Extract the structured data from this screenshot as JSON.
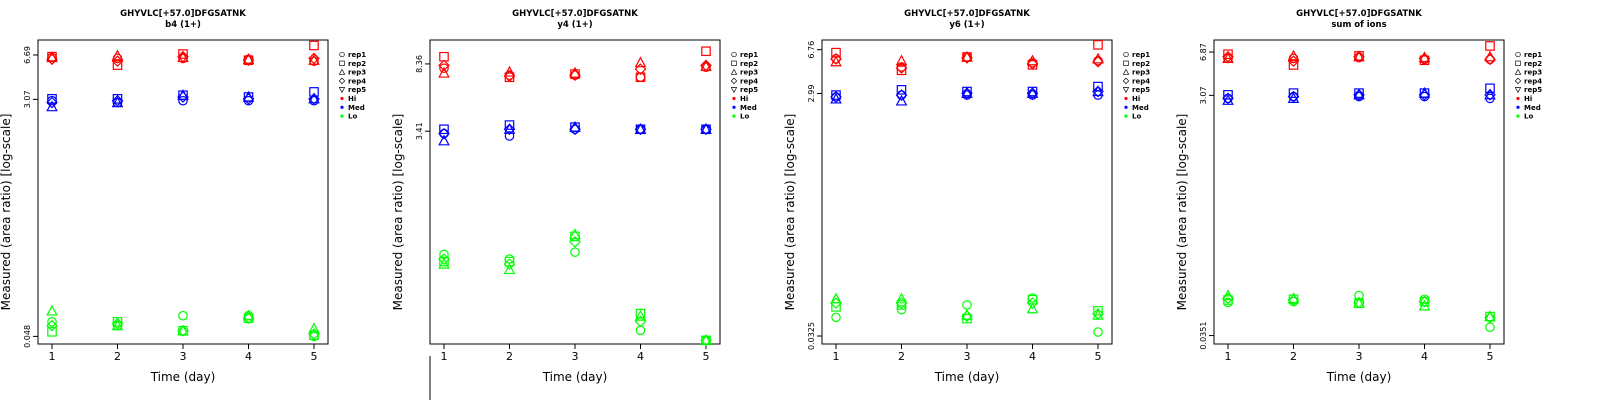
{
  "colors": {
    "Hi": "#ff0000",
    "Med": "#0000ff",
    "Lo": "#00ff00"
  },
  "legend": {
    "replicates": [
      {
        "label": "rep1",
        "marker": "circle"
      },
      {
        "label": "rep2",
        "marker": "square"
      },
      {
        "label": "rep3",
        "marker": "triangle-up"
      },
      {
        "label": "rep4",
        "marker": "diamond"
      },
      {
        "label": "rep5",
        "marker": "triangle-down"
      }
    ],
    "groups": [
      "Hi",
      "Med",
      "Lo"
    ]
  },
  "chart_data": [
    {
      "type": "scatter",
      "title": "GHYVLC[+57.0]DFGSATNK",
      "subtitle": "b4 (1+)",
      "xlabel": "Time (day)",
      "ylabel": "Measured (area ratio) [log-scale]",
      "x_ticks": [
        1,
        2,
        3,
        4,
        5
      ],
      "y_scale": "log",
      "ylim": [
        0.042,
        8.7
      ],
      "y_ticks": [
        {
          "value": 6.69,
          "label": "6.69"
        },
        {
          "value": 3.07,
          "label": "3.07"
        },
        {
          "value": 0.048,
          "label": "0.048"
        }
      ],
      "legend_position": "right",
      "series": [
        {
          "group": "Hi",
          "rep": "rep1",
          "values": [
            6.4,
            6.3,
            6.3,
            6.2,
            6.0
          ]
        },
        {
          "group": "Hi",
          "rep": "rep2",
          "values": [
            6.5,
            5.6,
            6.8,
            6.1,
            7.9
          ]
        },
        {
          "group": "Hi",
          "rep": "rep3",
          "values": [
            6.4,
            6.6,
            6.4,
            6.2,
            6.1
          ]
        },
        {
          "group": "Hi",
          "rep": "rep4",
          "values": [
            6.2,
            6.0,
            6.5,
            6.1,
            6.3
          ]
        },
        {
          "group": "Med",
          "rep": "rep1",
          "values": [
            3.0,
            2.9,
            3.0,
            3.0,
            3.0
          ]
        },
        {
          "group": "Med",
          "rep": "rep2",
          "values": [
            3.1,
            3.1,
            3.3,
            3.2,
            3.5
          ]
        },
        {
          "group": "Med",
          "rep": "rep3",
          "values": [
            2.7,
            2.9,
            3.3,
            3.2,
            3.1
          ]
        },
        {
          "group": "Med",
          "rep": "rep4",
          "values": [
            2.9,
            3.0,
            3.2,
            3.1,
            3.1
          ]
        },
        {
          "group": "Lo",
          "rep": "rep1",
          "values": [
            0.062,
            0.058,
            0.069,
            0.069,
            0.048
          ]
        },
        {
          "group": "Lo",
          "rep": "rep2",
          "values": [
            0.052,
            0.062,
            0.053,
            0.066,
            0.049
          ]
        },
        {
          "group": "Lo",
          "rep": "rep3",
          "values": [
            0.075,
            0.058,
            0.053,
            0.069,
            0.055
          ]
        },
        {
          "group": "Lo",
          "rep": "rep4",
          "values": [
            0.058,
            0.06,
            0.053,
            0.066,
            0.05
          ]
        }
      ]
    },
    {
      "type": "scatter",
      "title": "GHYVLC[+57.0]DFGSATNK",
      "subtitle": "y4 (1+)",
      "xlabel": "Time (day)",
      "ylabel": "Measured (area ratio) [log-scale]",
      "x_ticks": [
        1,
        2,
        3,
        4,
        5
      ],
      "y_scale": "log",
      "ylim": [
        0.2,
        11.5
      ],
      "y_ticks": [
        {
          "value": 8.36,
          "label": "8.36"
        },
        {
          "value": 3.41,
          "label": "3.41"
        }
      ],
      "legend_position": "right",
      "series": [
        {
          "group": "Hi",
          "rep": "rep1",
          "values": [
            7.9,
            7.2,
            7.2,
            7.0,
            8.0
          ]
        },
        {
          "group": "Hi",
          "rep": "rep2",
          "values": [
            9.2,
            7.0,
            7.3,
            7.0,
            9.9
          ]
        },
        {
          "group": "Hi",
          "rep": "rep3",
          "values": [
            7.4,
            7.5,
            7.4,
            8.5,
            8.1
          ]
        },
        {
          "group": "Hi",
          "rep": "rep4",
          "values": [
            8.2,
            7.1,
            7.2,
            7.8,
            8.2
          ]
        },
        {
          "group": "Med",
          "rep": "rep1",
          "values": [
            3.3,
            3.2,
            3.5,
            3.5,
            3.5
          ]
        },
        {
          "group": "Med",
          "rep": "rep2",
          "values": [
            3.5,
            3.7,
            3.6,
            3.5,
            3.5
          ]
        },
        {
          "group": "Med",
          "rep": "rep3",
          "values": [
            3.0,
            3.5,
            3.6,
            3.5,
            3.5
          ]
        },
        {
          "group": "Med",
          "rep": "rep4",
          "values": [
            3.3,
            3.5,
            3.5,
            3.5,
            3.5
          ]
        },
        {
          "group": "Lo",
          "rep": "rep1",
          "values": [
            0.66,
            0.62,
            0.68,
            0.24,
            0.21
          ]
        },
        {
          "group": "Lo",
          "rep": "rep2",
          "values": [
            0.6,
            0.6,
            0.84,
            0.3,
            0.21
          ]
        },
        {
          "group": "Lo",
          "rep": "rep3",
          "values": [
            0.58,
            0.54,
            0.86,
            0.29,
            0.21
          ]
        },
        {
          "group": "Lo",
          "rep": "rep4",
          "values": [
            0.62,
            0.58,
            0.78,
            0.27,
            0.21
          ]
        }
      ]
    },
    {
      "type": "scatter",
      "title": "GHYVLC[+57.0]DFGSATNK",
      "subtitle": "y6 (1+)",
      "xlabel": "Time (day)",
      "ylabel": "Measured (area ratio) [log-scale]",
      "x_ticks": [
        1,
        2,
        3,
        4,
        5
      ],
      "y_scale": "log",
      "ylim": [
        0.028,
        8.1
      ],
      "y_ticks": [
        {
          "value": 6.76,
          "label": "6.76"
        },
        {
          "value": 2.99,
          "label": "2.99"
        },
        {
          "value": 0.0325,
          "label": "0.0325"
        }
      ],
      "legend_position": "right",
      "series": [
        {
          "group": "Hi",
          "rep": "rep1",
          "values": [
            5.7,
            4.9,
            5.9,
            5.3,
            5.5
          ]
        },
        {
          "group": "Hi",
          "rep": "rep2",
          "values": [
            6.4,
            4.6,
            5.9,
            5.1,
            7.4
          ]
        },
        {
          "group": "Hi",
          "rep": "rep3",
          "values": [
            5.4,
            5.5,
            5.9,
            5.5,
            5.7
          ]
        },
        {
          "group": "Hi",
          "rep": "rep4",
          "values": [
            5.7,
            4.8,
            5.8,
            5.2,
            5.4
          ]
        },
        {
          "group": "Med",
          "rep": "rep1",
          "values": [
            2.8,
            2.9,
            2.9,
            2.9,
            2.9
          ]
        },
        {
          "group": "Med",
          "rep": "rep2",
          "values": [
            2.9,
            3.2,
            3.1,
            3.1,
            3.4
          ]
        },
        {
          "group": "Med",
          "rep": "rep3",
          "values": [
            2.7,
            2.6,
            3.0,
            3.0,
            3.1
          ]
        },
        {
          "group": "Med",
          "rep": "rep4",
          "values": [
            2.8,
            2.9,
            3.0,
            3.0,
            3.1
          ]
        },
        {
          "group": "Lo",
          "rep": "rep1",
          "values": [
            0.046,
            0.053,
            0.058,
            0.066,
            0.035
          ]
        },
        {
          "group": "Lo",
          "rep": "rep2",
          "values": [
            0.056,
            0.058,
            0.045,
            0.064,
            0.052
          ]
        },
        {
          "group": "Lo",
          "rep": "rep3",
          "values": [
            0.065,
            0.065,
            0.048,
            0.054,
            0.048
          ]
        },
        {
          "group": "Lo",
          "rep": "rep4",
          "values": [
            0.06,
            0.06,
            0.047,
            0.06,
            0.049
          ]
        }
      ]
    },
    {
      "type": "scatter",
      "title": "GHYVLC[+57.0]DFGSATNK",
      "subtitle": "sum of ions",
      "xlabel": "Time (day)",
      "ylabel": "Measured (area ratio) [log-scale]",
      "x_ticks": [
        1,
        2,
        3,
        4,
        5
      ],
      "y_scale": "log",
      "ylim": [
        0.03,
        8.6
      ],
      "y_ticks": [
        {
          "value": 6.87,
          "label": "6.87"
        },
        {
          "value": 3.07,
          "label": "3.07"
        },
        {
          "value": 0.0351,
          "label": "0.0351"
        }
      ],
      "legend_position": "right",
      "series": [
        {
          "group": "Hi",
          "rep": "rep1",
          "values": [
            6.1,
            6.1,
            6.2,
            6.0,
            6.0
          ]
        },
        {
          "group": "Hi",
          "rep": "rep2",
          "values": [
            6.6,
            5.4,
            6.4,
            5.9,
            7.7
          ]
        },
        {
          "group": "Hi",
          "rep": "rep3",
          "values": [
            6.1,
            6.4,
            6.3,
            6.2,
            6.3
          ]
        },
        {
          "group": "Hi",
          "rep": "rep4",
          "values": [
            6.3,
            5.8,
            6.3,
            6.1,
            6.0
          ]
        },
        {
          "group": "Med",
          "rep": "rep1",
          "values": [
            2.9,
            3.0,
            3.0,
            3.0,
            2.9
          ]
        },
        {
          "group": "Med",
          "rep": "rep2",
          "values": [
            3.1,
            3.2,
            3.2,
            3.2,
            3.5
          ]
        },
        {
          "group": "Med",
          "rep": "rep3",
          "values": [
            2.8,
            2.9,
            3.1,
            3.2,
            3.1
          ]
        },
        {
          "group": "Med",
          "rep": "rep4",
          "values": [
            2.9,
            3.0,
            3.1,
            3.1,
            3.1
          ]
        },
        {
          "group": "Lo",
          "rep": "rep1",
          "values": [
            0.065,
            0.066,
            0.074,
            0.069,
            0.041
          ]
        },
        {
          "group": "Lo",
          "rep": "rep2",
          "values": [
            0.068,
            0.069,
            0.064,
            0.066,
            0.05
          ]
        },
        {
          "group": "Lo",
          "rep": "rep3",
          "values": [
            0.074,
            0.07,
            0.064,
            0.061,
            0.05
          ]
        },
        {
          "group": "Lo",
          "rep": "rep4",
          "values": [
            0.07,
            0.068,
            0.065,
            0.066,
            0.049
          ]
        }
      ]
    }
  ]
}
